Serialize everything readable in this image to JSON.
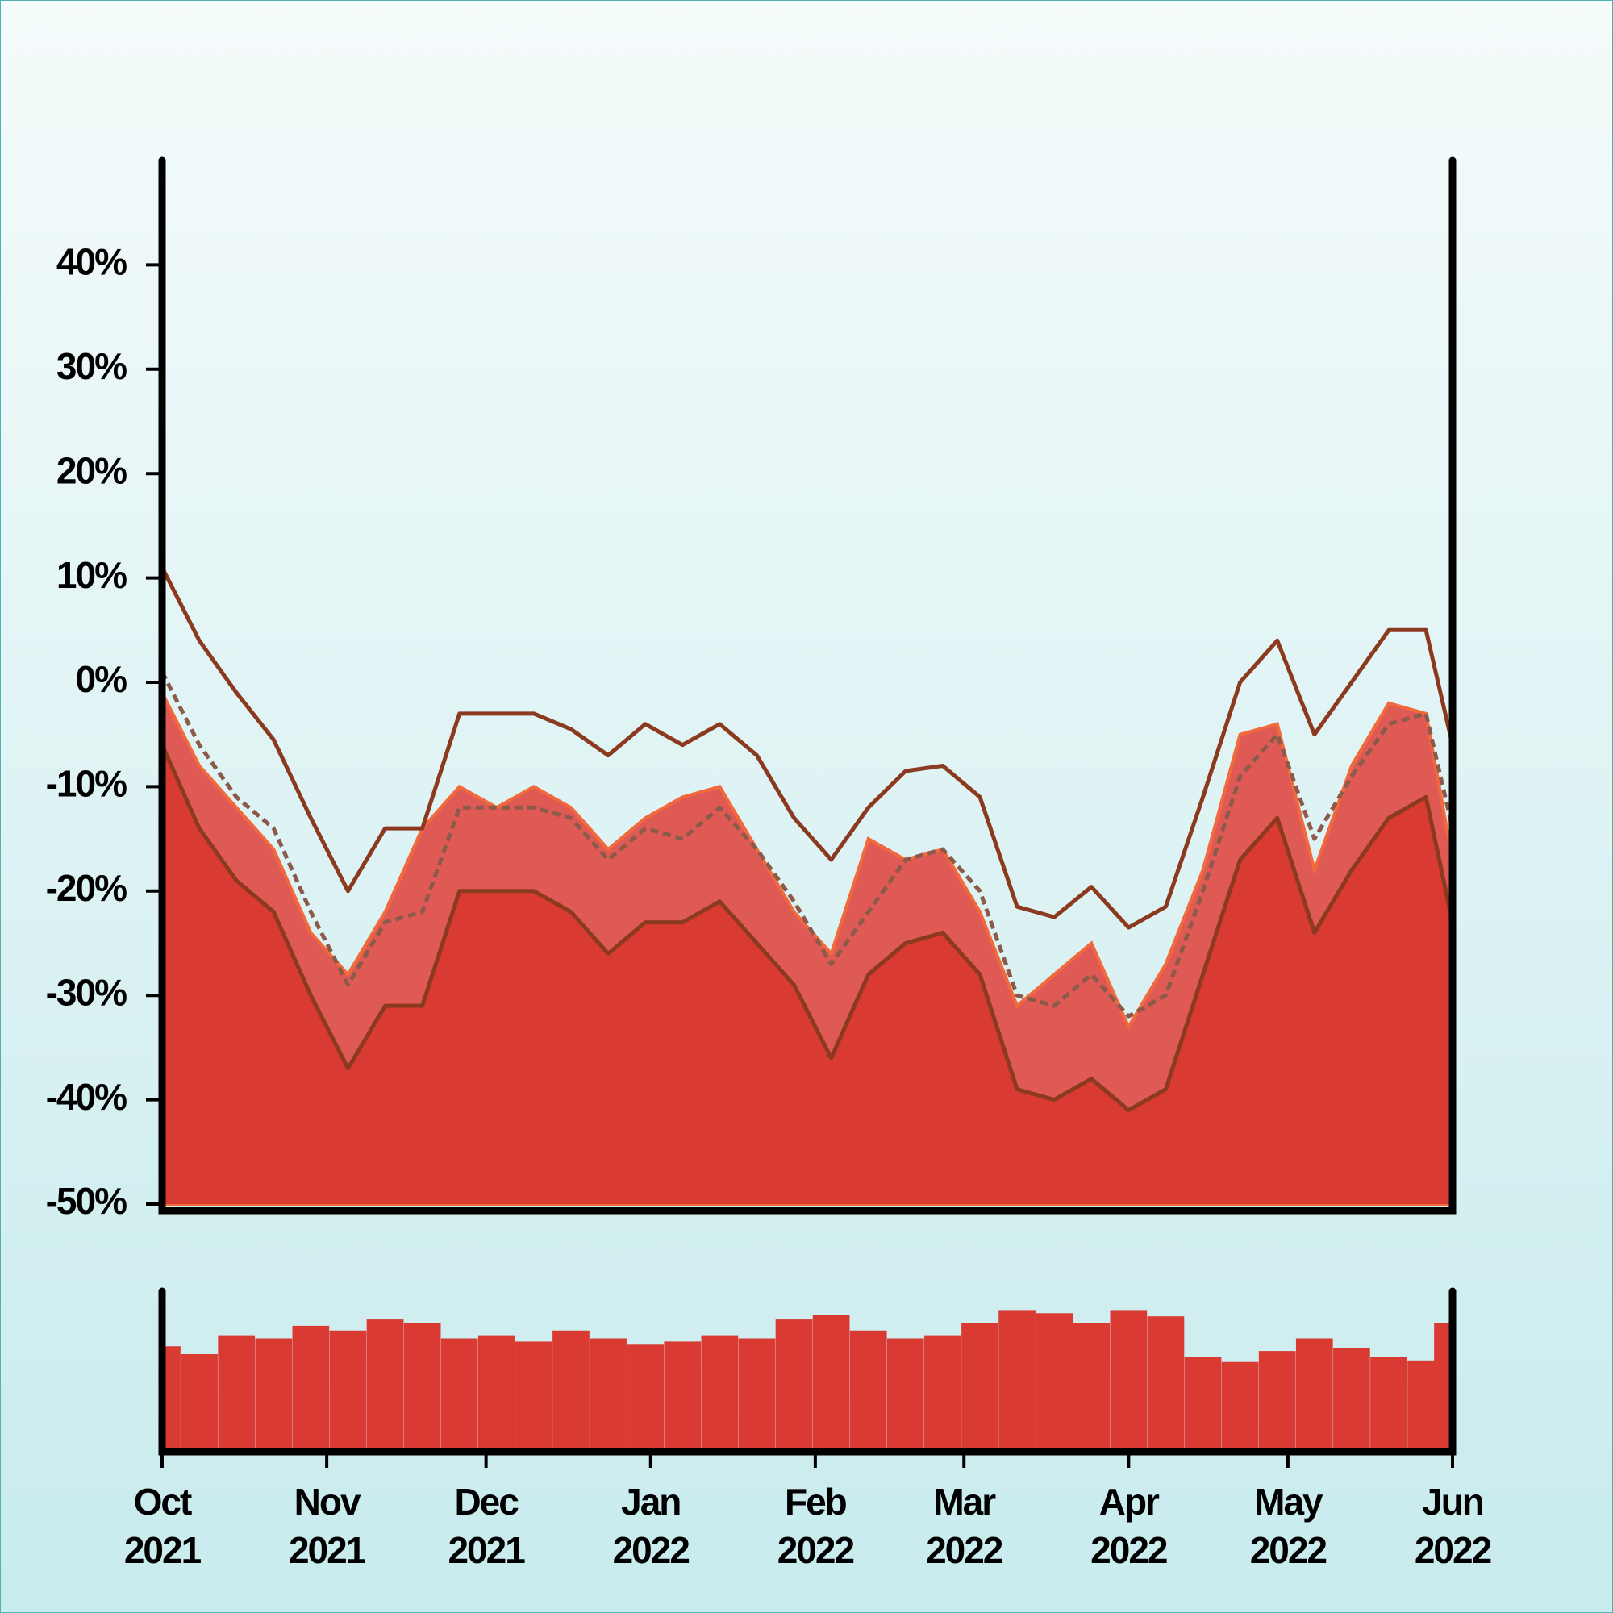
{
  "chart_data": [
    {
      "type": "line",
      "x": [
        0,
        7,
        14,
        21,
        28,
        35,
        42,
        49,
        56,
        63,
        70,
        77,
        84,
        91,
        98,
        105,
        112,
        119,
        126,
        133,
        140,
        147,
        154,
        161,
        168,
        175,
        182,
        189,
        196,
        203,
        210,
        217,
        224,
        231,
        238,
        243
      ],
      "series": [
        {
          "color": "#e05a55",
          "values": [
            -1,
            -8,
            -12,
            -16,
            -24,
            -28,
            -22,
            -14,
            -10,
            -12,
            -10,
            -12,
            -16,
            -13,
            -11,
            -10,
            -16,
            -22,
            -26,
            -15,
            -17,
            -16,
            -22,
            -31,
            -28,
            -25,
            -33,
            -27,
            -18,
            -5,
            -4,
            -18,
            -8,
            -2,
            -3,
            -17
          ]
        },
        {
          "color": "#d93a32",
          "values": [
            -6,
            -14,
            -19,
            -22,
            -30,
            -37,
            -31,
            -31,
            -20,
            -20,
            -20,
            -22,
            -26,
            -23,
            -23,
            -21,
            -25,
            -29,
            -36,
            -28,
            -25,
            -24,
            -28,
            -39,
            -40,
            -38,
            -41,
            -39,
            -28,
            -17,
            -13,
            -24,
            -18,
            -13,
            -11,
            -23
          ]
        },
        {
          "color": "#8b3a1f",
          "values": [
            11,
            4,
            -1,
            -5.5,
            -13,
            -20,
            -14,
            -14,
            -3,
            -3,
            -3,
            -4.5,
            -7,
            -4,
            -6,
            -4,
            -7,
            -13,
            -17,
            -12,
            -8.5,
            -8,
            -11,
            -21.5,
            -22.5,
            -19.6,
            -23.5,
            -21.5,
            -11,
            0,
            4,
            -5,
            0,
            5,
            5,
            -6
          ]
        },
        {
          "color": "#8b5a4a",
          "values": [
            1,
            -6,
            -11,
            -14,
            -22,
            -29,
            -23,
            -22,
            -12,
            -12,
            -12,
            -13,
            -17,
            -14,
            -15,
            -12,
            -16,
            -21,
            -27,
            -22,
            -17,
            -16,
            -20,
            -30,
            -31,
            -28,
            -32,
            -30,
            -20,
            -9,
            -5,
            -15,
            -9,
            -4,
            -3,
            -14
          ]
        }
      ],
      "xlim": [
        0,
        243
      ],
      "ylim": [
        -50,
        50
      ],
      "yticks": [
        {
          "value": -50,
          "label": "-50%"
        },
        {
          "value": -40,
          "label": "-40%"
        },
        {
          "value": -30,
          "label": "-30%"
        },
        {
          "value": -20,
          "label": "-20%"
        },
        {
          "value": -10,
          "label": "-10%"
        },
        {
          "value": 0,
          "label": "0%"
        },
        {
          "value": 10,
          "label": "10%"
        },
        {
          "value": 20,
          "label": "20%"
        },
        {
          "value": 30,
          "label": "30%"
        },
        {
          "value": 40,
          "label": "40%"
        }
      ]
    },
    {
      "type": "bar",
      "x": [
        0,
        7,
        14,
        21,
        28,
        35,
        42,
        49,
        56,
        63,
        70,
        77,
        84,
        91,
        98,
        105,
        112,
        119,
        126,
        133,
        140,
        147,
        154,
        161,
        168,
        175,
        182,
        189,
        196,
        203,
        210,
        217,
        224,
        231,
        238,
        243
      ],
      "values": [
        65,
        60,
        72,
        70,
        78,
        75,
        82,
        80,
        70,
        72,
        68,
        75,
        70,
        66,
        68,
        72,
        70,
        82,
        85,
        75,
        70,
        72,
        80,
        88,
        86,
        80,
        88,
        84,
        58,
        55,
        62,
        70,
        64,
        58,
        56,
        80
      ],
      "color": "#d93a32",
      "xlim": [
        0,
        243
      ],
      "ylim": [
        0,
        100
      ],
      "xticks": [
        {
          "value": 0,
          "label": "Oct 2021"
        },
        {
          "value": 31,
          "label": "Nov 2021"
        },
        {
          "value": 61,
          "label": "Dec 2021"
        },
        {
          "value": 92,
          "label": "Jan 2022"
        },
        {
          "value": 123,
          "label": "Feb 2022"
        },
        {
          "value": 151,
          "label": "Mar 2022"
        },
        {
          "value": 182,
          "label": "Apr 2022"
        },
        {
          "value": 212,
          "label": "May 2022"
        },
        {
          "value": 243,
          "label": "Jun 2022"
        }
      ]
    }
  ]
}
